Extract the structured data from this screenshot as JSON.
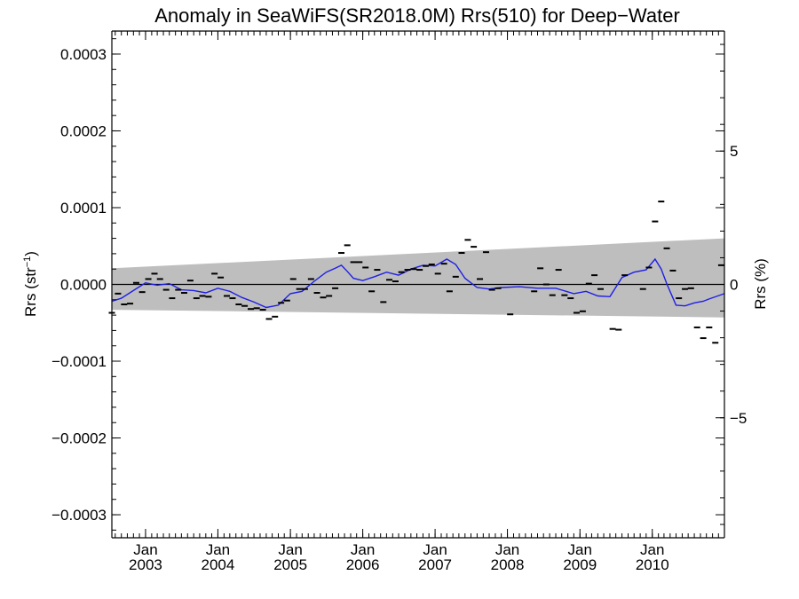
{
  "chart_data": {
    "type": "scatter",
    "title": "Anomaly in SeaWiFS(SR2018.0M) Rrs(510) for Deep−Water",
    "ylabel_main": "Rrs (str",
    "ylabel_sup": "−1",
    "ylabel_close": ")",
    "ylabel_right": "Rrs (%)",
    "x_range": [
      "2002-07-15",
      "2010-12-31"
    ],
    "ylim": [
      -0.00033,
      0.00033
    ],
    "ylim_right": [
      -9.5,
      9.5
    ],
    "y_ticks": [
      {
        "value": 0.0003,
        "label": "0.0003"
      },
      {
        "value": 0.0002,
        "label": "0.0002"
      },
      {
        "value": 0.0001,
        "label": "0.0001"
      },
      {
        "value": 0.0,
        "label": "0.0000"
      },
      {
        "value": -0.0001,
        "label": "−0.0001"
      },
      {
        "value": -0.0002,
        "label": "−0.0002"
      },
      {
        "value": -0.0003,
        "label": "−0.0003"
      }
    ],
    "y_ticks_right": [
      {
        "value": 5,
        "label": "5"
      },
      {
        "value": 0,
        "label": "0"
      },
      {
        "value": -5,
        "label": "−5"
      }
    ],
    "x_ticks": [
      {
        "date": "2003-01-01",
        "month": "Jan",
        "year": "2003"
      },
      {
        "date": "2004-01-01",
        "month": "Jan",
        "year": "2004"
      },
      {
        "date": "2005-01-01",
        "month": "Jan",
        "year": "2005"
      },
      {
        "date": "2006-01-01",
        "month": "Jan",
        "year": "2006"
      },
      {
        "date": "2007-01-01",
        "month": "Jan",
        "year": "2007"
      },
      {
        "date": "2008-01-01",
        "month": "Jan",
        "year": "2008"
      },
      {
        "date": "2009-01-01",
        "month": "Jan",
        "year": "2009"
      },
      {
        "date": "2010-01-01",
        "month": "Jan",
        "year": "2010"
      }
    ],
    "band": {
      "start": {
        "date": "2002-07-15",
        "upper": 2.1e-05,
        "lower": -3.3e-05
      },
      "end": {
        "date": "2010-12-31",
        "upper": 6e-05,
        "lower": -4.3e-05
      }
    },
    "zero_line": 0.0,
    "series": [
      {
        "style": "dash",
        "color": "#000000",
        "x": [
          "2002-07-15",
          "2002-08-15",
          "2002-09-15",
          "2002-10-15",
          "2002-11-15",
          "2002-12-15",
          "2003-01-15",
          "2003-02-15",
          "2003-03-15",
          "2003-04-15",
          "2003-05-15",
          "2003-06-15",
          "2003-07-15",
          "2003-08-15",
          "2003-09-15",
          "2003-10-15",
          "2003-11-15",
          "2003-12-15",
          "2004-01-15",
          "2004-02-15",
          "2004-03-15",
          "2004-04-15",
          "2004-05-15",
          "2004-06-15",
          "2004-07-15",
          "2004-08-15",
          "2004-09-15",
          "2004-10-15",
          "2004-11-15",
          "2004-12-15",
          "2005-01-15",
          "2005-02-15",
          "2005-03-15",
          "2005-04-15",
          "2005-05-15",
          "2005-06-15",
          "2005-07-15",
          "2005-08-15",
          "2005-09-15",
          "2005-10-15",
          "2005-11-15",
          "2005-12-15",
          "2006-01-15",
          "2006-02-15",
          "2006-03-15",
          "2006-04-15",
          "2006-05-15",
          "2006-06-15",
          "2006-07-15",
          "2006-08-15",
          "2006-09-15",
          "2006-10-15",
          "2006-11-15",
          "2006-12-15",
          "2007-01-15",
          "2007-02-15",
          "2007-03-15",
          "2007-04-15",
          "2007-05-15",
          "2007-06-15",
          "2007-07-15",
          "2007-08-15",
          "2007-09-15",
          "2007-10-15",
          "2007-11-15",
          "2008-01-15",
          "2008-05-15",
          "2008-06-15",
          "2008-07-15",
          "2008-08-15",
          "2008-09-15",
          "2008-10-15",
          "2008-11-15",
          "2008-12-15",
          "2009-01-15",
          "2009-02-15",
          "2009-03-15",
          "2009-04-15",
          "2009-06-15",
          "2009-07-15",
          "2009-08-15",
          "2009-11-15",
          "2009-12-15",
          "2010-01-15",
          "2010-02-15",
          "2010-03-15",
          "2010-04-15",
          "2010-05-15",
          "2010-06-15",
          "2010-07-15",
          "2010-08-15",
          "2010-09-15",
          "2010-10-15",
          "2010-11-15",
          "2010-12-15"
        ],
        "y": [
          -3.7e-05,
          -1.2e-05,
          -2.6e-05,
          -2.5e-05,
          2e-06,
          -1e-05,
          7e-06,
          1.4e-05,
          7e-06,
          -7e-06,
          -1.8e-05,
          -7e-06,
          -1.1e-05,
          5e-06,
          -1.8e-05,
          -1.5e-05,
          -1.6e-05,
          1.4e-05,
          9e-06,
          -1.5e-05,
          -1.8e-05,
          -2.6e-05,
          -2.8e-05,
          -3.2e-05,
          -3.1e-05,
          -3.3e-05,
          -4.5e-05,
          -4.2e-05,
          -2.4e-05,
          -2.1e-05,
          7e-06,
          -6e-06,
          -6e-06,
          7e-06,
          -1.1e-05,
          -1.7e-05,
          -1.5e-05,
          -5e-06,
          4.1e-05,
          5.1e-05,
          2.9e-05,
          2.9e-05,
          2.2e-05,
          -9e-06,
          1.9e-05,
          -2.3e-05,
          6e-06,
          4e-06,
          1.6e-05,
          1.9e-05,
          2e-05,
          1.9e-05,
          2.4e-05,
          2.6e-05,
          1.4e-05,
          2.7e-05,
          -9e-06,
          1e-05,
          4.1e-05,
          5.8e-05,
          4.9e-05,
          7e-06,
          4.2e-05,
          -7e-06,
          -5e-06,
          -3.9e-05,
          -9e-06,
          2.1e-05,
          0.0,
          -1.4e-05,
          1.9e-05,
          -1.4e-05,
          -1.8e-05,
          -3.7e-05,
          -3.5e-05,
          1e-06,
          1.2e-05,
          -6e-06,
          -5.8e-05,
          -5.9e-05,
          1.2e-05,
          -6e-06,
          2.2e-05,
          8.2e-05,
          0.000108,
          4.7e-05,
          1.8e-05,
          -1.8e-05,
          -6e-06,
          -5e-06,
          -5.6e-05,
          -7e-05,
          -5.6e-05,
          -7.6e-05,
          2.5e-05
        ]
      },
      {
        "style": "line",
        "color": "#1f1fe6",
        "x": [
          "2002-07-15",
          "2002-09-01",
          "2002-11-01",
          "2003-01-01",
          "2003-03-01",
          "2003-05-01",
          "2003-07-01",
          "2003-09-01",
          "2003-11-01",
          "2004-01-01",
          "2004-03-01",
          "2004-05-01",
          "2004-07-01",
          "2004-09-01",
          "2004-11-01",
          "2005-01-01",
          "2005-03-01",
          "2005-05-01",
          "2005-07-01",
          "2005-08-15",
          "2005-09-15",
          "2005-10-15",
          "2005-11-15",
          "2006-01-01",
          "2006-03-01",
          "2006-05-01",
          "2006-07-01",
          "2006-09-01",
          "2006-11-01",
          "2007-01-01",
          "2007-03-01",
          "2007-04-15",
          "2007-06-01",
          "2007-08-01",
          "2007-10-01",
          "2007-12-01",
          "2008-03-01",
          "2008-06-01",
          "2008-09-01",
          "2008-12-01",
          "2009-02-01",
          "2009-04-01",
          "2009-06-01",
          "2009-08-01",
          "2009-10-01",
          "2009-12-01",
          "2010-01-15",
          "2010-02-15",
          "2010-03-15",
          "2010-05-01",
          "2010-06-15",
          "2010-08-01",
          "2010-09-15",
          "2010-10-15",
          "2010-12-31"
        ],
        "y": [
          -2.2e-05,
          -1.8e-05,
          -8e-06,
          2e-06,
          -1e-06,
          1e-06,
          -7e-06,
          -8e-06,
          -1.1e-05,
          -5e-06,
          -9e-06,
          -1.7e-05,
          -2.3e-05,
          -3e-05,
          -2.7e-05,
          -1.2e-05,
          -9e-06,
          4e-06,
          1.6e-05,
          2.1e-05,
          2.5e-05,
          1.7e-05,
          8e-06,
          5e-06,
          1e-05,
          1.6e-05,
          1.2e-05,
          2e-05,
          2.5e-05,
          2.4e-05,
          3.3e-05,
          2.6e-05,
          8e-06,
          -4e-06,
          -6e-06,
          -4e-06,
          -3e-06,
          -5e-06,
          -5e-06,
          -1.2e-05,
          -9e-06,
          -1.5e-05,
          -1.6e-05,
          9e-06,
          1.6e-05,
          1.9e-05,
          3.3e-05,
          2e-05,
          1e-06,
          -2.7e-05,
          -2.8e-05,
          -2.4e-05,
          -2.2e-05,
          -1.9e-05,
          -1.2e-05
        ]
      }
    ]
  }
}
